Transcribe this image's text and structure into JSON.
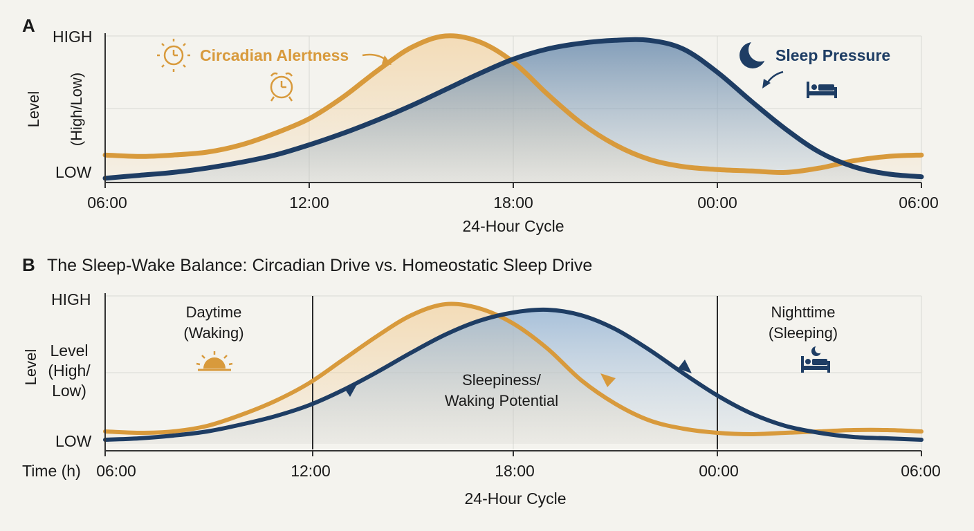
{
  "colors": {
    "circadian": "#d89a3c",
    "sleep_pressure": "#1e3d64",
    "background": "#f4f3ee",
    "grid": "#d9d9d4"
  },
  "chart_data": [
    {
      "type": "line",
      "panel": "A",
      "title": "",
      "xlabel": "24-Hour Cycle",
      "ylabel": "Level",
      "ylabel_sub": "(High/Low)",
      "x_ticks": [
        "06:00",
        "12:00",
        "18:00",
        "00:00",
        "06:00"
      ],
      "y_ticks": [
        "HIGH",
        "LOW"
      ],
      "xlim": [
        0,
        24
      ],
      "ylim": [
        0,
        1
      ],
      "x_hours_from_0600": [
        0,
        1,
        2,
        3,
        4,
        5,
        6,
        7,
        8,
        9,
        10,
        11,
        12,
        13,
        14,
        15,
        16,
        17,
        18,
        19,
        20,
        21,
        22,
        23,
        24
      ],
      "series": [
        {
          "name": "Circadian Alertness",
          "color": "#d89a3c",
          "values": [
            0.18,
            0.17,
            0.18,
            0.2,
            0.25,
            0.33,
            0.43,
            0.58,
            0.76,
            0.92,
            1.0,
            0.96,
            0.82,
            0.6,
            0.4,
            0.25,
            0.15,
            0.1,
            0.08,
            0.07,
            0.06,
            0.09,
            0.14,
            0.17,
            0.18
          ]
        },
        {
          "name": "Sleep Pressure",
          "color": "#1e3d64",
          "values": [
            0.02,
            0.04,
            0.06,
            0.09,
            0.13,
            0.18,
            0.25,
            0.33,
            0.42,
            0.52,
            0.63,
            0.74,
            0.84,
            0.91,
            0.95,
            0.97,
            0.97,
            0.91,
            0.75,
            0.55,
            0.36,
            0.2,
            0.1,
            0.05,
            0.03
          ]
        }
      ],
      "annotations": [
        "Circadian Alertness",
        "Sleep Pressure"
      ],
      "grid": true
    },
    {
      "type": "line",
      "panel": "B",
      "title": "The Sleep-Wake Balance: Circadian Drive vs. Homeostatic Sleep Drive",
      "xlabel": "24-Hour Cycle",
      "ylabel": "Level",
      "ylabel_inner": [
        "Level",
        "(High/",
        "Low)"
      ],
      "x_axis_name": "Time (h)",
      "x_ticks": [
        "06:00",
        "12:00",
        "18:00",
        "00:00",
        "06:00"
      ],
      "y_ticks": [
        "HIGH",
        "LOW"
      ],
      "xlim": [
        0,
        24
      ],
      "ylim": [
        0,
        1
      ],
      "x_hours_from_0600": [
        0,
        1,
        2,
        3,
        4,
        5,
        6,
        7,
        8,
        9,
        10,
        11,
        12,
        13,
        14,
        15,
        16,
        17,
        18,
        19,
        20,
        21,
        22,
        23,
        24
      ],
      "series": [
        {
          "color": "#d89a3c",
          "values": [
            0.08,
            0.07,
            0.08,
            0.12,
            0.2,
            0.3,
            0.43,
            0.6,
            0.77,
            0.92,
            1.0,
            0.97,
            0.86,
            0.68,
            0.45,
            0.28,
            0.16,
            0.1,
            0.07,
            0.06,
            0.07,
            0.08,
            0.09,
            0.09,
            0.08
          ]
        },
        {
          "color": "#1e3d64",
          "values": [
            0.02,
            0.03,
            0.05,
            0.08,
            0.13,
            0.19,
            0.27,
            0.38,
            0.51,
            0.65,
            0.78,
            0.88,
            0.94,
            0.96,
            0.92,
            0.82,
            0.67,
            0.5,
            0.34,
            0.21,
            0.12,
            0.07,
            0.04,
            0.03,
            0.02
          ]
        }
      ],
      "annotations": {
        "day": [
          "Daytime",
          "(Waking)"
        ],
        "night": [
          "Nighttime",
          "(Sleeping)"
        ],
        "center": [
          "Sleepiness/",
          "Waking Potential"
        ]
      },
      "grid": true
    }
  ]
}
